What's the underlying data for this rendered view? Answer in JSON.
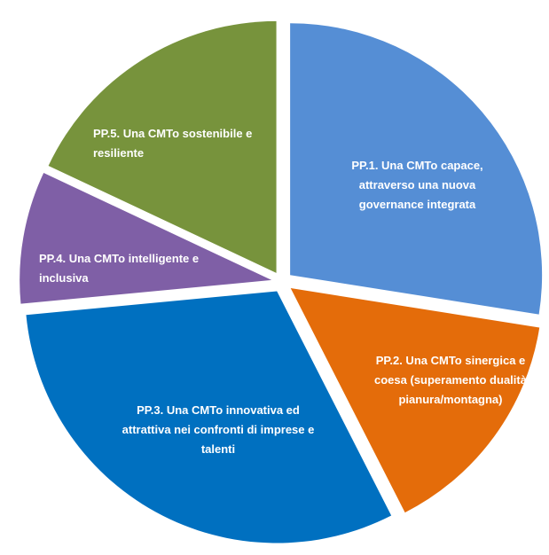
{
  "chart_data": {
    "type": "pie",
    "categories": [
      "PP.1. Una CMTo capace, attraverso una nuova governance integrata",
      "PP.2. Una CMTo sinergica e coesa (superamento dualità pianura/montagna)",
      "PP.3. Una CMTo innovativa ed attrattiva nei confronti di imprese e talenti",
      "PP.4. Una CMTo intelligente e inclusiva",
      "PP.5. Una CMTo sostenibile e resiliente"
    ],
    "values": [
      27.5,
      15,
      31,
      8.5,
      18
    ],
    "colors": [
      "#558ed5",
      "#e46c0a",
      "#0070c0",
      "#7f5fa6",
      "#77933c"
    ]
  }
}
